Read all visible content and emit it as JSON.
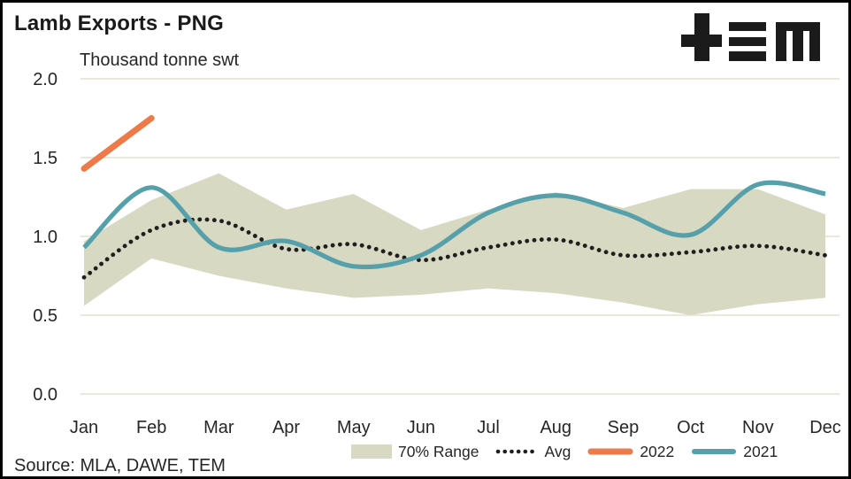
{
  "header": {
    "title": "Lamb Exports - PNG",
    "subtitle": "Thousand tonne swt"
  },
  "logo": {
    "name": "TEM"
  },
  "footer": {
    "source": "Source: MLA, DAWE, TEM"
  },
  "colors": {
    "range_band": "#d8d9c2",
    "avg_line": "#1f1f1f",
    "line_2022": "#ee7a49",
    "line_2021": "#55a0aa",
    "gridline": "#e9e8da",
    "text": "#262626"
  },
  "chart_data": {
    "type": "line",
    "title": "Lamb Exports - PNG",
    "ylabel": "Thousand tonne swt",
    "xlabel": "",
    "ylim": [
      0.0,
      2.0
    ],
    "yticks": [
      0.0,
      0.5,
      1.0,
      1.5,
      2.0
    ],
    "grid": "horizontal",
    "legend_position": "bottom",
    "categories": [
      "Jan",
      "Feb",
      "Mar",
      "Apr",
      "May",
      "Jun",
      "Jul",
      "Aug",
      "Sep",
      "Oct",
      "Nov",
      "Dec"
    ],
    "series": [
      {
        "name": "70% Range",
        "type": "band",
        "color": "#d8d9c2",
        "upper": [
          0.97,
          1.23,
          1.4,
          1.17,
          1.27,
          1.04,
          1.17,
          1.28,
          1.18,
          1.3,
          1.3,
          1.14
        ],
        "lower": [
          0.56,
          0.86,
          0.75,
          0.67,
          0.61,
          0.63,
          0.67,
          0.64,
          0.58,
          0.5,
          0.57,
          0.61
        ]
      },
      {
        "name": "Avg",
        "type": "line",
        "style": "dotted",
        "color": "#1f1f1f",
        "values": [
          0.74,
          1.04,
          1.1,
          0.92,
          0.95,
          0.85,
          0.93,
          0.98,
          0.88,
          0.9,
          0.94,
          0.88
        ]
      },
      {
        "name": "2022",
        "type": "line",
        "style": "solid",
        "color": "#ee7a49",
        "values": [
          1.43,
          1.75,
          null,
          null,
          null,
          null,
          null,
          null,
          null,
          null,
          null,
          null
        ]
      },
      {
        "name": "2021",
        "type": "line",
        "style": "solid",
        "color": "#55a0aa",
        "values": [
          0.93,
          1.31,
          0.93,
          0.97,
          0.81,
          0.88,
          1.15,
          1.26,
          1.15,
          1.01,
          1.33,
          1.27
        ]
      }
    ]
  }
}
